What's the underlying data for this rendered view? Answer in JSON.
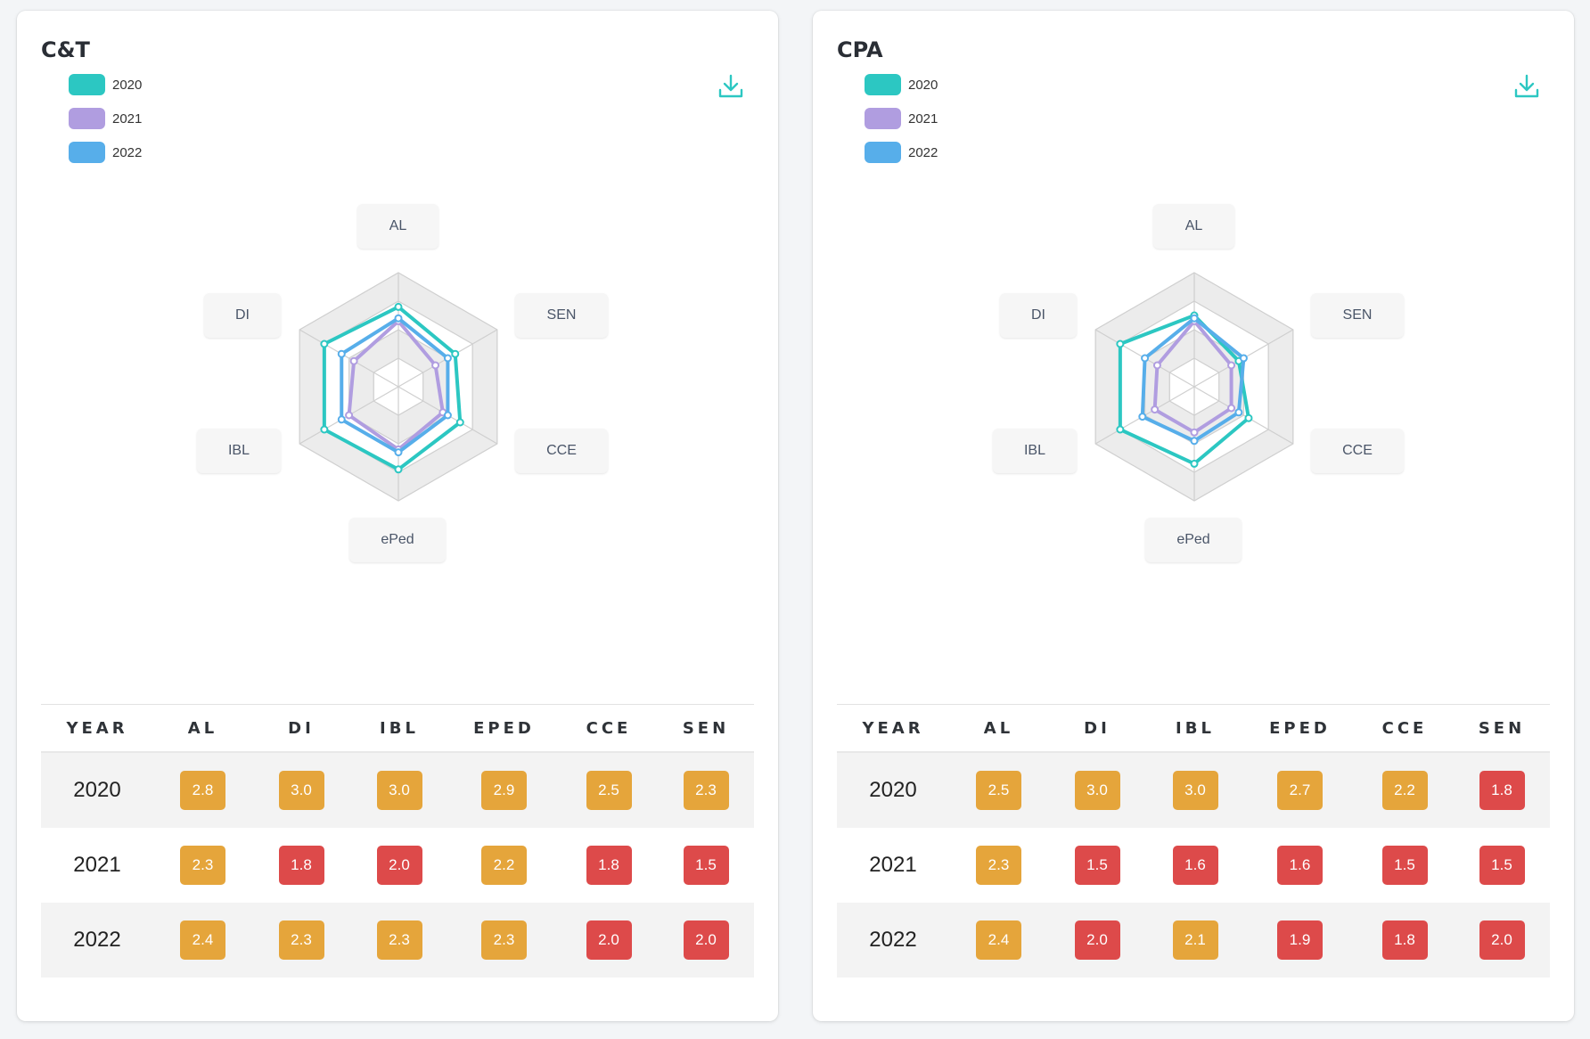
{
  "colors": {
    "y2020": "#2cc7c2",
    "y2021": "#b09de0",
    "y2022": "#57aeea",
    "orange": "#e5a53b",
    "red": "#dd4a4a",
    "icon": "#2cc7c2"
  },
  "cards": [
    {
      "title": "C&T",
      "legend": [
        "2020",
        "2021",
        "2022"
      ],
      "axes": [
        "AL",
        "SEN",
        "CCE",
        "ePed",
        "IBL",
        "DI"
      ],
      "table": {
        "headers": [
          "YEAR",
          "AL",
          "DI",
          "IBL",
          "EPED",
          "CCE",
          "SEN"
        ],
        "rows": [
          {
            "year": "2020",
            "values": [
              "2.8",
              "3.0",
              "3.0",
              "2.9",
              "2.5",
              "2.3"
            ],
            "status": [
              "orange",
              "orange",
              "orange",
              "orange",
              "orange",
              "orange"
            ]
          },
          {
            "year": "2021",
            "values": [
              "2.3",
              "1.8",
              "2.0",
              "2.2",
              "1.8",
              "1.5"
            ],
            "status": [
              "orange",
              "red",
              "red",
              "orange",
              "red",
              "red"
            ]
          },
          {
            "year": "2022",
            "values": [
              "2.4",
              "2.3",
              "2.3",
              "2.3",
              "2.0",
              "2.0"
            ],
            "status": [
              "orange",
              "orange",
              "orange",
              "orange",
              "red",
              "red"
            ]
          }
        ]
      }
    },
    {
      "title": "CPA",
      "legend": [
        "2020",
        "2021",
        "2022"
      ],
      "axes": [
        "AL",
        "SEN",
        "CCE",
        "ePed",
        "IBL",
        "DI"
      ],
      "table": {
        "headers": [
          "YEAR",
          "AL",
          "DI",
          "IBL",
          "EPED",
          "CCE",
          "SEN"
        ],
        "rows": [
          {
            "year": "2020",
            "values": [
              "2.5",
              "3.0",
              "3.0",
              "2.7",
              "2.2",
              "1.8"
            ],
            "status": [
              "orange",
              "orange",
              "orange",
              "orange",
              "orange",
              "red"
            ]
          },
          {
            "year": "2021",
            "values": [
              "2.3",
              "1.5",
              "1.6",
              "1.6",
              "1.5",
              "1.5"
            ],
            "status": [
              "orange",
              "red",
              "red",
              "red",
              "red",
              "red"
            ]
          },
          {
            "year": "2022",
            "values": [
              "2.4",
              "2.0",
              "2.1",
              "1.9",
              "1.8",
              "2.0"
            ],
            "status": [
              "orange",
              "red",
              "orange",
              "red",
              "red",
              "red"
            ]
          }
        ]
      }
    }
  ],
  "chart_data": [
    {
      "type": "radar",
      "title": "C&T",
      "axes": [
        "AL",
        "SEN",
        "CCE",
        "ePed",
        "IBL",
        "DI"
      ],
      "rmax": 4,
      "legend": "top-left",
      "series": [
        {
          "name": "2020",
          "values": [
            2.8,
            2.3,
            2.5,
            2.9,
            3.0,
            3.0
          ]
        },
        {
          "name": "2021",
          "values": [
            2.3,
            1.5,
            1.8,
            2.2,
            2.0,
            1.8
          ]
        },
        {
          "name": "2022",
          "values": [
            2.4,
            2.0,
            2.0,
            2.3,
            2.3,
            2.3
          ]
        }
      ]
    },
    {
      "type": "radar",
      "title": "CPA",
      "axes": [
        "AL",
        "SEN",
        "CCE",
        "ePed",
        "IBL",
        "DI"
      ],
      "rmax": 4,
      "legend": "top-left",
      "series": [
        {
          "name": "2020",
          "values": [
            2.5,
            1.8,
            2.2,
            2.7,
            3.0,
            3.0
          ]
        },
        {
          "name": "2021",
          "values": [
            2.3,
            1.5,
            1.5,
            1.6,
            1.6,
            1.5
          ]
        },
        {
          "name": "2022",
          "values": [
            2.4,
            2.0,
            1.8,
            1.9,
            2.1,
            2.0
          ]
        }
      ]
    }
  ]
}
